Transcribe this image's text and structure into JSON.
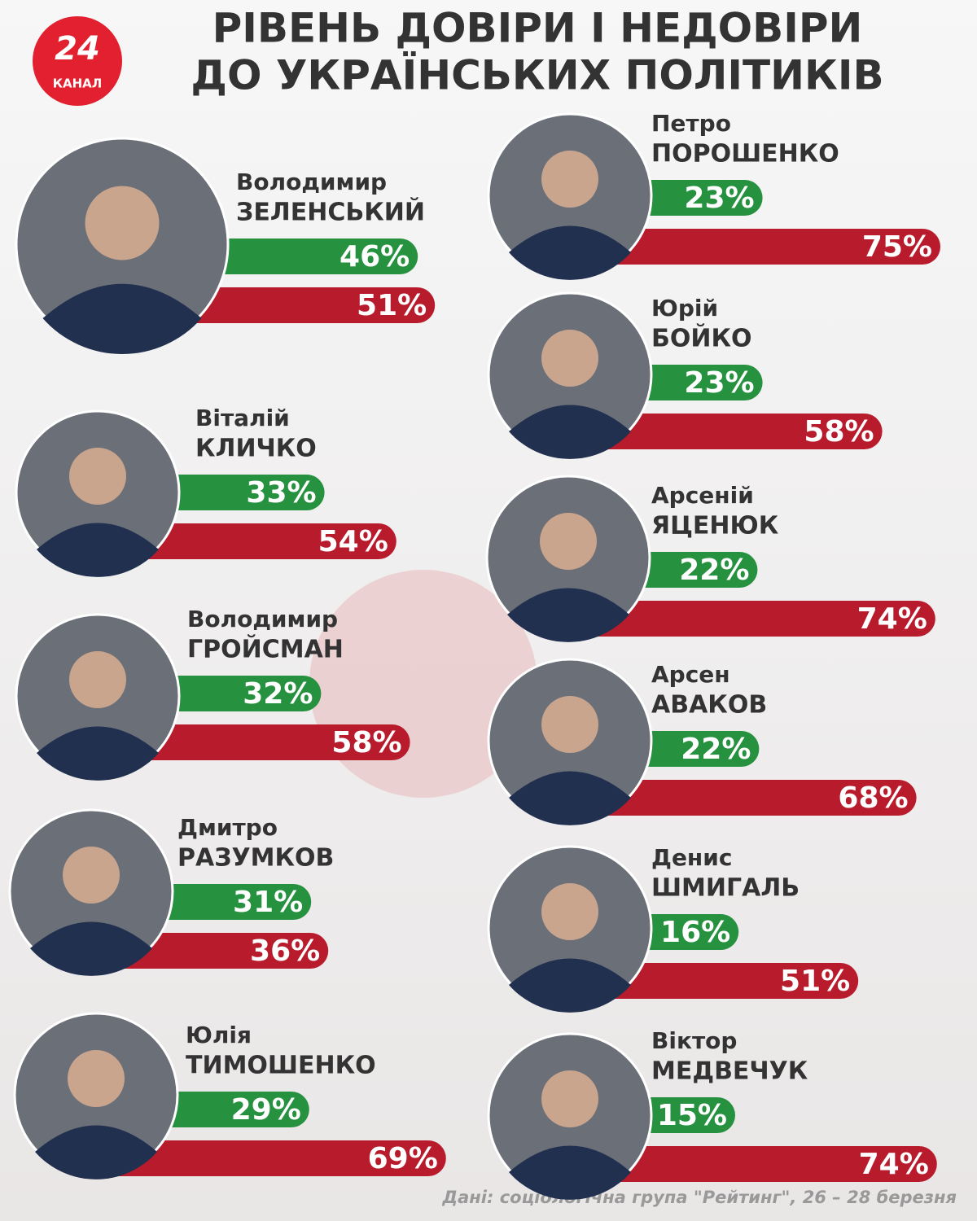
{
  "logo": {
    "number": "24",
    "name": "КАНАЛ"
  },
  "chart_data": {
    "type": "bar",
    "title": [
      "РІВЕНЬ ДОВІРИ І НЕДОВІРИ",
      "ДО УКРАЇНСЬКИХ ПОЛІТИКІВ"
    ],
    "categories": [
      [
        "Володимир",
        "ЗЕЛЕНСЬКИЙ"
      ],
      [
        "Віталій",
        "КЛИЧКО"
      ],
      [
        "Володимир",
        "ГРОЙСМАН"
      ],
      [
        "Дмитро",
        "РАЗУМКОВ"
      ],
      [
        "Юлія",
        "ТИМОШЕНКО"
      ],
      [
        "Петро",
        "ПОРОШЕНКО"
      ],
      [
        "Юрій",
        "БОЙКО"
      ],
      [
        "Арсеній",
        "ЯЦЕНЮК"
      ],
      [
        "Арсен",
        "АВАКОВ"
      ],
      [
        "Денис",
        "ШМИГАЛЬ"
      ],
      [
        "Віктор",
        "МЕДВЕЧУК"
      ]
    ],
    "series": [
      {
        "color": "#26913f",
        "values": [
          46,
          33,
          32,
          31,
          29,
          23,
          23,
          22,
          22,
          16,
          15
        ],
        "value_labels": [
          "46%",
          "33%",
          "32%",
          "31%",
          "29%",
          "23%",
          "23%",
          "22%",
          "22%",
          "16%",
          "15%"
        ]
      },
      {
        "color": "#b81c2c",
        "values": [
          51,
          54,
          58,
          36,
          69,
          75,
          58,
          74,
          68,
          51,
          74
        ],
        "value_labels": [
          "51%",
          "54%",
          "58%",
          "36%",
          "69%",
          "75%",
          "58%",
          "74%",
          "68%",
          "51%",
          "74%"
        ]
      }
    ],
    "source": "Дані: соціологічна група \"Рейтинг\", 26 – 28 березня"
  }
}
